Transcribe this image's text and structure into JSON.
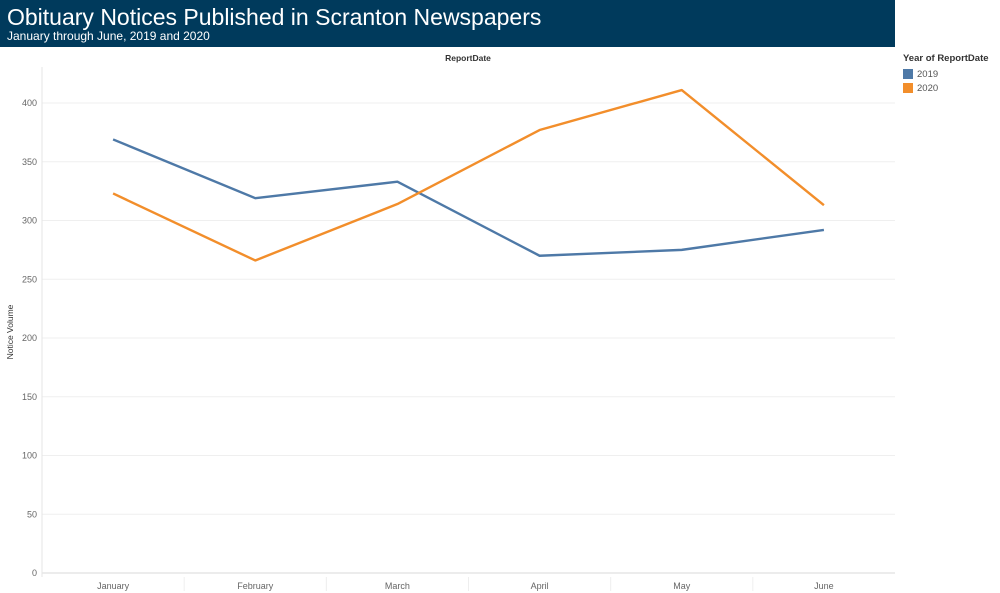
{
  "header": {
    "title": "Obituary Notices Published in Scranton Newspapers",
    "subtitle": "January through June, 2019 and 2020"
  },
  "legend": {
    "title": "Year of ReportDate",
    "items": [
      {
        "label": "2019",
        "color": "#4e79a7"
      },
      {
        "label": "2020",
        "color": "#f28e2b"
      }
    ]
  },
  "chart_data": {
    "type": "line",
    "column_header": "ReportDate",
    "ylabel": "Notice Volume",
    "xlabel": "",
    "categories": [
      "January",
      "February",
      "March",
      "April",
      "May",
      "June"
    ],
    "yticks": [
      0,
      50,
      100,
      150,
      200,
      250,
      300,
      350,
      400
    ],
    "ylim": [
      0,
      420
    ],
    "grid": true,
    "legend_position": "right",
    "series": [
      {
        "name": "2019",
        "color": "#4e79a7",
        "values": [
          369,
          319,
          333,
          270,
          275,
          292
        ]
      },
      {
        "name": "2020",
        "color": "#f28e2b",
        "values": [
          323,
          266,
          314,
          377,
          411,
          313
        ]
      }
    ]
  }
}
